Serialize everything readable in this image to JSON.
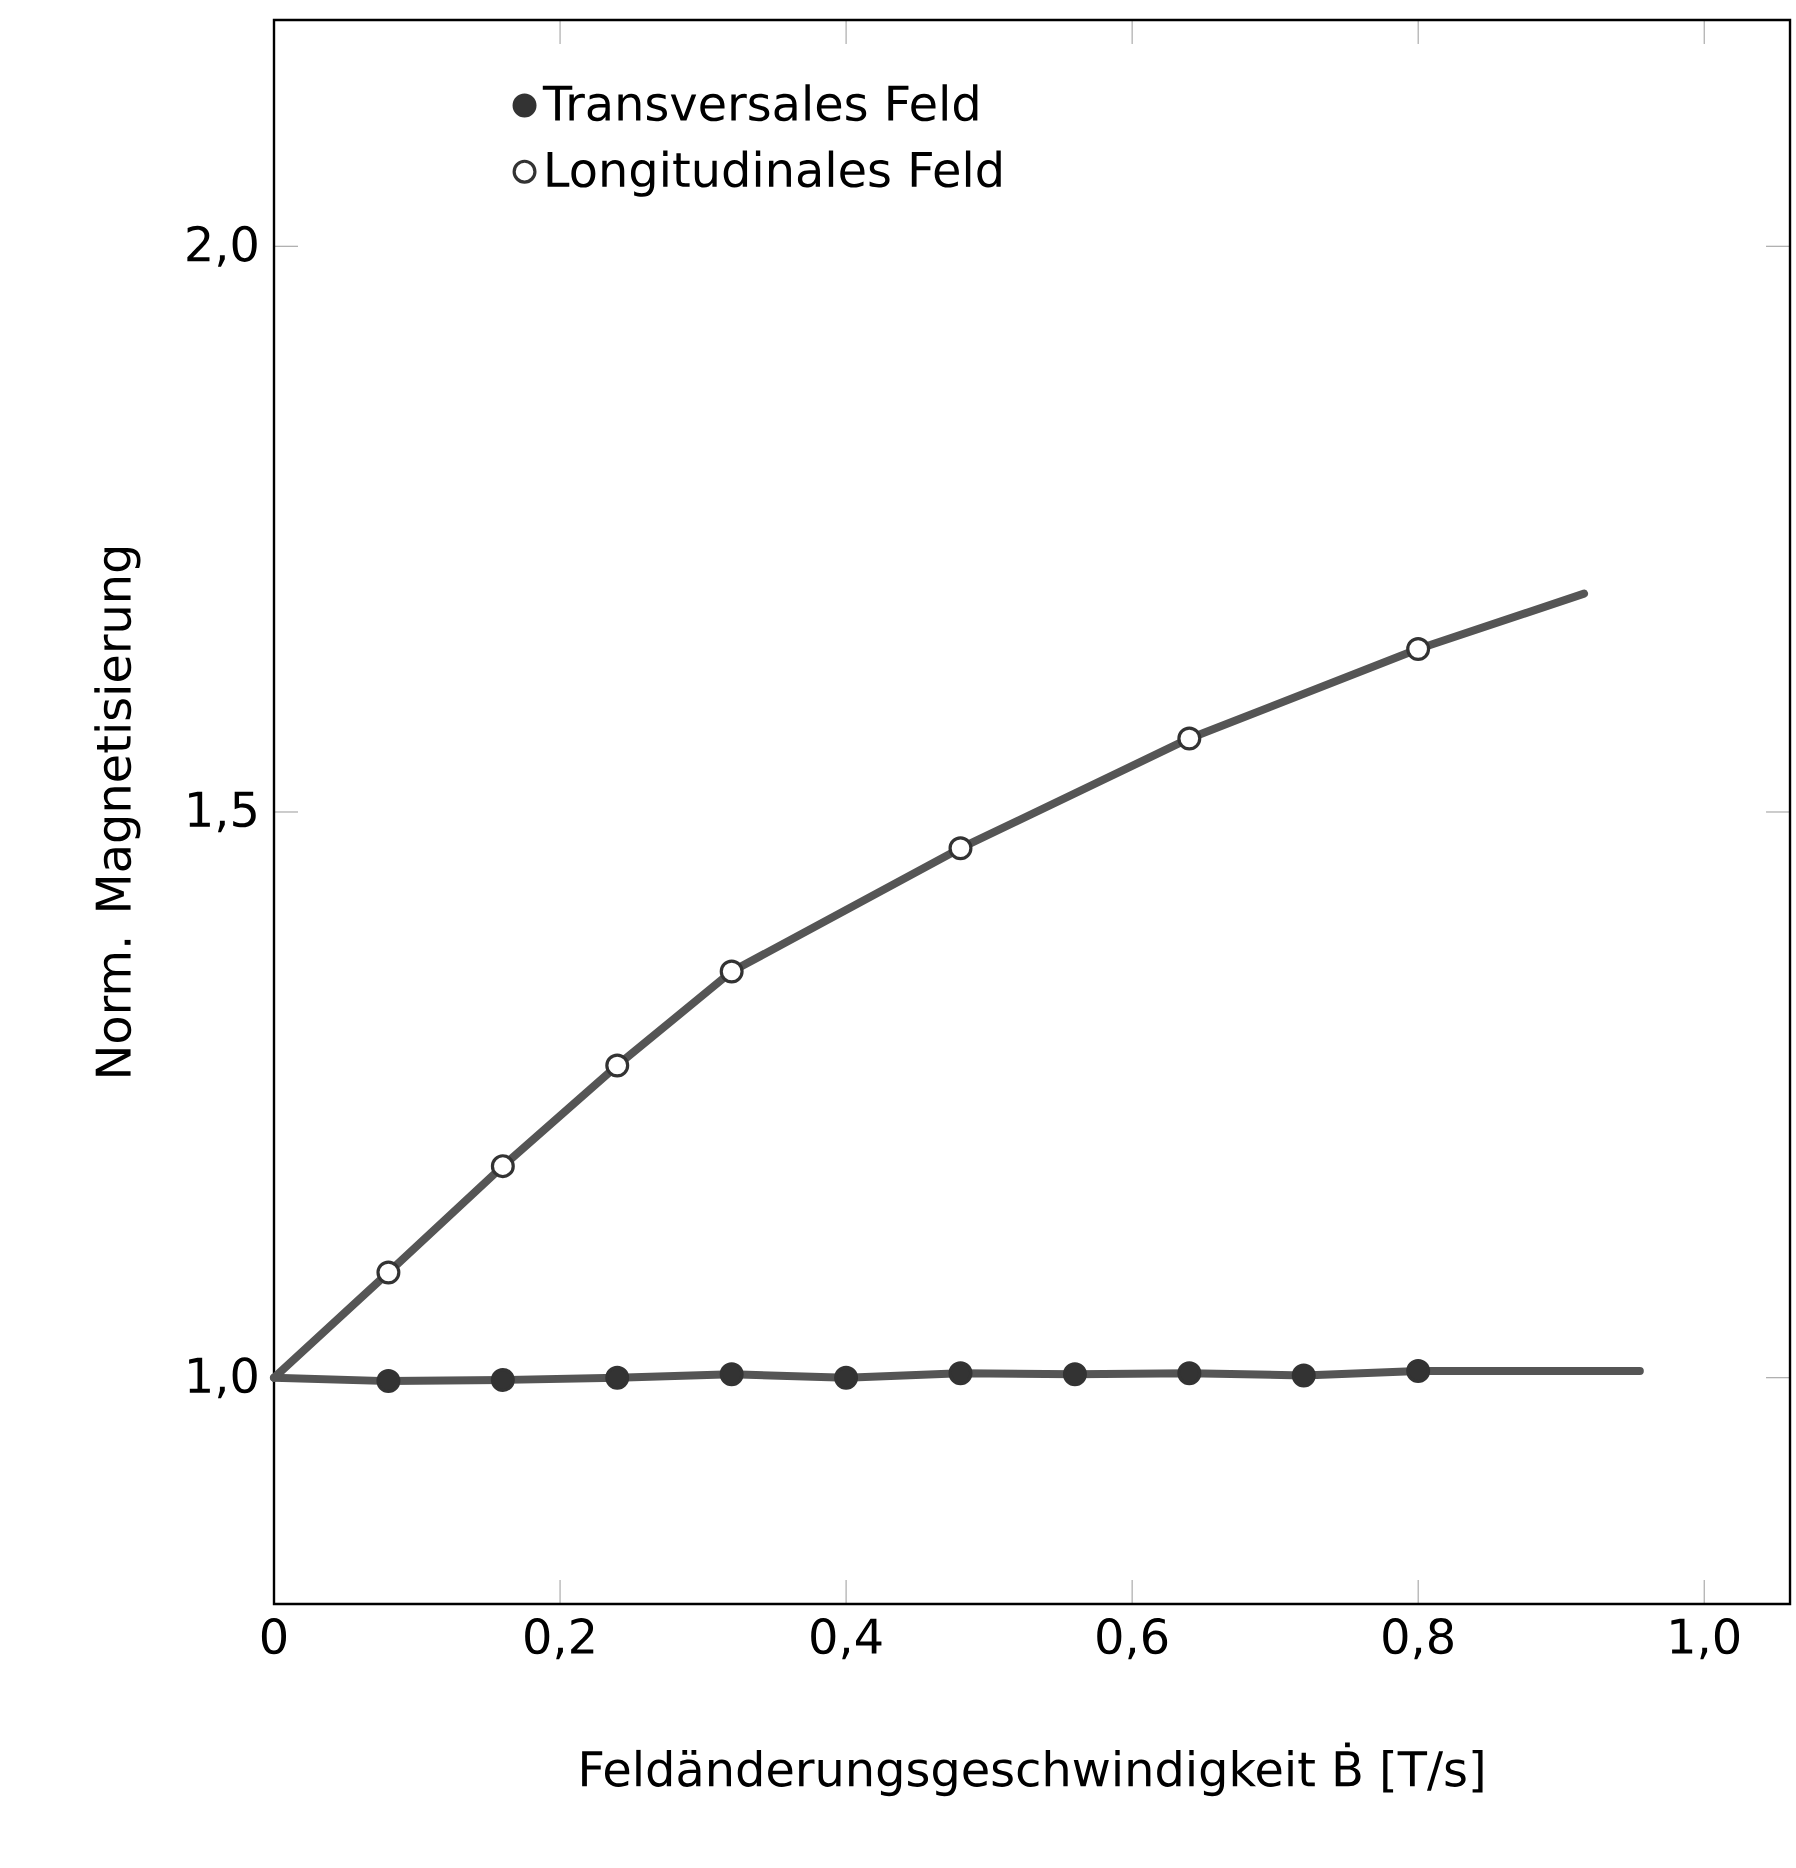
{
  "chart_data": {
    "type": "scatter",
    "xlabel": "Feldänderungsgeschwindigkeit Ḃ  [T/s]",
    "ylabel": "Norm. Magnetisierung",
    "xlim": [
      0,
      1.06
    ],
    "ylim": [
      0.8,
      2.2
    ],
    "xticks": [
      {
        "value": 0,
        "label": "0"
      },
      {
        "value": 0.2,
        "label": "0,2"
      },
      {
        "value": 0.4,
        "label": "0,4"
      },
      {
        "value": 0.6,
        "label": "0,6"
      },
      {
        "value": 0.8,
        "label": "0,8"
      },
      {
        "value": 1.0,
        "label": "1,0"
      }
    ],
    "yticks": [
      {
        "value": 1.0,
        "label": "1,0"
      },
      {
        "value": 1.5,
        "label": "1,5"
      },
      {
        "value": 2.0,
        "label": "2,0"
      }
    ],
    "legend": "top left",
    "grid": false,
    "series": [
      {
        "name": "Transversales Feld",
        "marker": "circle",
        "color": "#333333",
        "x": [
          0.08,
          0.16,
          0.24,
          0.32,
          0.4,
          0.48,
          0.56,
          0.64,
          0.72,
          0.8
        ],
        "values": [
          0.997,
          0.998,
          1.0,
          1.003,
          1.0,
          1.004,
          1.003,
          1.004,
          1.002,
          1.006
        ]
      },
      {
        "name": "Longitudinales Feld",
        "marker": "circle",
        "color": "#ffffff",
        "x": [
          0.08,
          0.16,
          0.24,
          0.32,
          0.48,
          0.64,
          0.8
        ],
        "values": [
          1.093,
          1.187,
          1.276,
          1.359,
          1.468,
          1.565,
          1.644
        ]
      },
      {
        "type": "line",
        "marker": "none",
        "color": "#555555",
        "x": [
          0,
          0.08,
          0.16,
          0.24,
          0.32,
          0.4,
          0.48,
          0.56,
          0.64,
          0.72,
          0.8,
          0.955
        ],
        "values": [
          1.0,
          0.997,
          0.998,
          1.0,
          1.003,
          1.0,
          1.004,
          1.003,
          1.004,
          1.002,
          1.006,
          1.006
        ]
      },
      {
        "type": "line",
        "marker": "none",
        "color": "#555555",
        "x": [
          0,
          0.08,
          0.16,
          0.24,
          0.32,
          0.48,
          0.64,
          0.8,
          0.916
        ],
        "values": [
          1.0,
          1.093,
          1.187,
          1.276,
          1.359,
          1.468,
          1.565,
          1.644,
          1.693
        ]
      }
    ]
  }
}
